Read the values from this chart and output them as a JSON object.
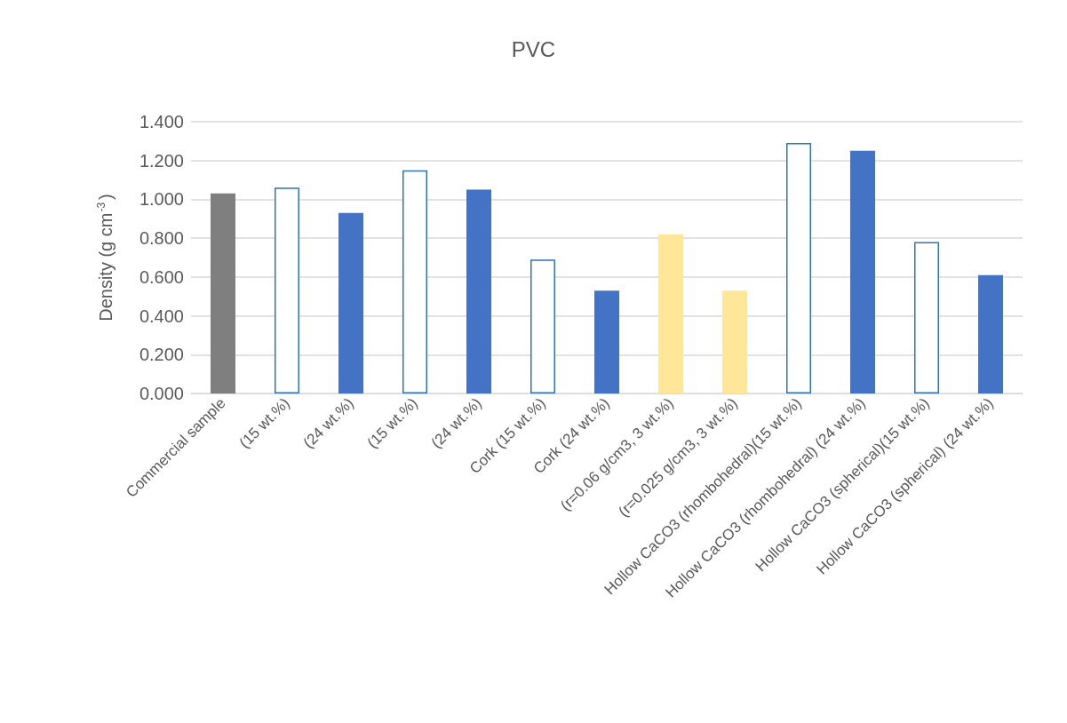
{
  "chart_data": {
    "type": "bar",
    "title": "PVC",
    "ylabel": "Density (g cm$^{-3}$)",
    "categories": [
      "Commercial sample",
      "(15 wt.%)",
      "(24 wt.%)",
      "(15 wt.%)",
      "(24 wt.%)",
      "Cork (15 wt.%)",
      "Cork (24 wt.%)",
      "(r=0.06 g/cm3, 3 wt.%)",
      "(r=0.025 g/cm3, 3 wt.%)",
      "Hollow CaCO3 (rhombohedral)(15 wt.%)",
      "Hollow CaCO3 (rhombohedral) (24 wt.%)",
      "Hollow CaCO3 (spherical)(15 wt.%)",
      "Hollow CaCO3 (spherical) (24 wt.%)"
    ],
    "values": [
      1.03,
      1.06,
      0.93,
      1.15,
      1.05,
      0.69,
      0.53,
      0.82,
      0.53,
      1.29,
      1.25,
      0.78,
      0.61
    ],
    "colors": [
      "#7f7f7f",
      "#ffffff",
      "#4472c4",
      "#ffffff",
      "#4472c4",
      "#ffffff",
      "#4472c4",
      "#ffe699",
      "#ffe699",
      "#ffffff",
      "#4472c4",
      "#ffffff",
      "#4472c4"
    ],
    "ylim": [
      0,
      1.4
    ],
    "yticks": [
      {
        "value": 0,
        "label": "0.000"
      },
      {
        "value": 0.2,
        "label": "0.200"
      },
      {
        "value": 0.4,
        "label": "0.400"
      },
      {
        "value": 0.6,
        "label": "0.600"
      },
      {
        "value": 0.8,
        "label": "0.800"
      },
      {
        "value": 1.0,
        "label": "1.000"
      },
      {
        "value": 1.2,
        "label": "1.200"
      },
      {
        "value": 1.4,
        "label": "1.400"
      }
    ],
    "grid": "y"
  }
}
